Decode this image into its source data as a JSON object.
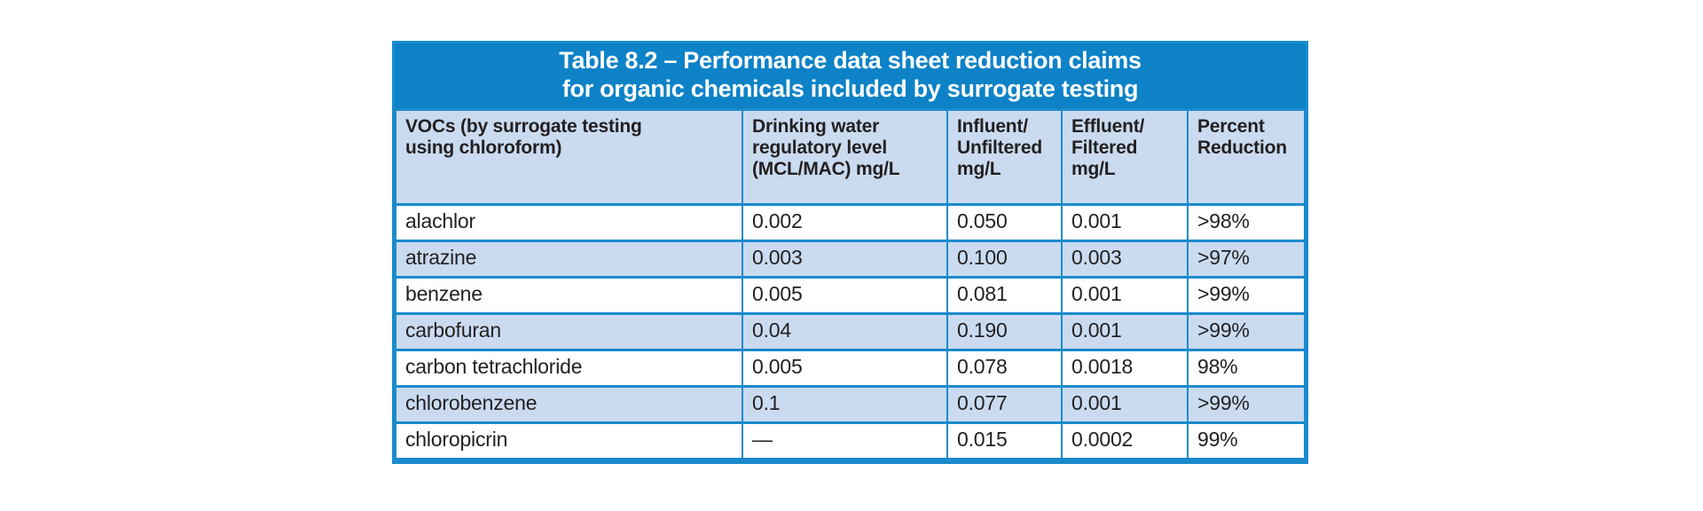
{
  "table": {
    "title_line1": "Table 8.2 – Performance data sheet reduction claims",
    "title_line2": "for organic chemicals included by surrogate testing",
    "columns": [
      "VOCs (by surrogate testing\nusing chloroform)",
      "Drinking water\nregulatory level\n(MCL/MAC) mg/L",
      "Influent/\nUnfiltered\nmg/L",
      "Effluent/\nFiltered\nmg/L",
      "Percent\nReduction"
    ],
    "rows": [
      {
        "voc": "alachlor",
        "regulatory_level": "0.002",
        "influent": "0.050",
        "effluent": "0.001",
        "percent_reduction": ">98%"
      },
      {
        "voc": "atrazine",
        "regulatory_level": "0.003",
        "influent": "0.100",
        "effluent": "0.003",
        "percent_reduction": ">97%"
      },
      {
        "voc": "benzene",
        "regulatory_level": "0.005",
        "influent": "0.081",
        "effluent": "0.001",
        "percent_reduction": ">99%"
      },
      {
        "voc": "carbofuran",
        "regulatory_level": "0.04",
        "influent": "0.190",
        "effluent": "0.001",
        "percent_reduction": ">99%"
      },
      {
        "voc": "carbon tetrachloride",
        "regulatory_level": "0.005",
        "influent": "0.078",
        "effluent": "0.0018",
        "percent_reduction": "98%"
      },
      {
        "voc": "chlorobenzene",
        "regulatory_level": "0.1",
        "influent": "0.077",
        "effluent": "0.001",
        "percent_reduction": ">99%"
      },
      {
        "voc": "chloropicrin",
        "regulatory_level": "—",
        "influent": "0.015",
        "effluent": "0.0002",
        "percent_reduction": "99%"
      }
    ],
    "colors": {
      "title_bg": "#0d82c7",
      "band_text": "#ffffff",
      "header_bg": "#cadbf0",
      "row_alt_bg": "#cadbf0",
      "row_bg": "#ffffff",
      "border": "#1b8bcd",
      "text": "#231f20"
    }
  }
}
